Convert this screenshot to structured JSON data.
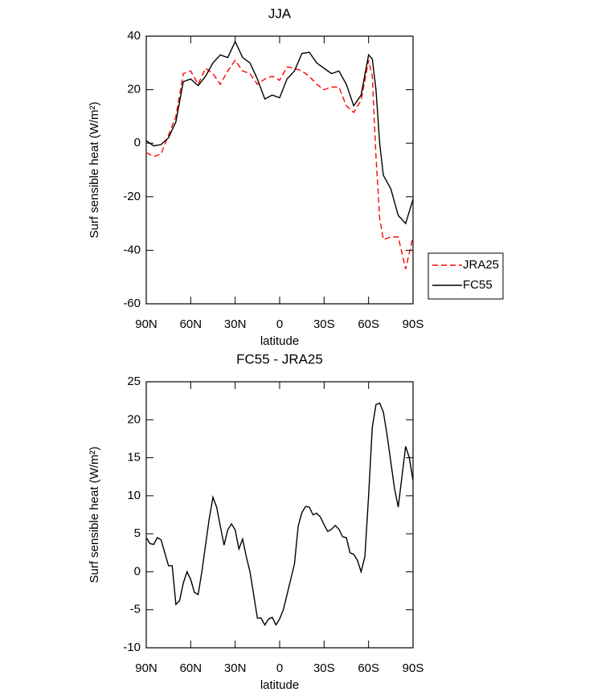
{
  "chart_data": [
    {
      "type": "line",
      "title": "JJA",
      "xlabel": "latitude",
      "ylabel": "Surf sensible heat (W/m²)",
      "x": [
        90,
        85,
        80,
        75,
        70,
        65,
        60,
        55,
        50,
        45,
        40,
        35,
        30,
        25,
        20,
        15,
        10,
        5,
        0,
        -5,
        -10,
        -15,
        -20,
        -25,
        -30,
        -35,
        -40,
        -45,
        -50,
        -55,
        -60,
        -62.5,
        -65,
        -67.5,
        -70,
        -75,
        -80,
        -85,
        -90
      ],
      "series": [
        {
          "name": "JRA25",
          "color": "#ff0000",
          "dash": true,
          "values": [
            -3.5,
            -5,
            -4,
            3,
            10,
            26,
            27,
            22,
            28,
            26,
            22,
            27,
            31,
            27,
            26,
            22,
            24,
            25,
            23.5,
            28.5,
            28,
            27,
            25,
            22,
            20,
            21,
            21,
            14,
            11.5,
            16,
            31,
            25,
            -5,
            -28,
            -36,
            -35,
            -35,
            -47,
            -35
          ]
        },
        {
          "name": "FC55",
          "color": "#000000",
          "dash": false,
          "values": [
            1,
            -1,
            -0.5,
            2,
            8,
            23,
            24,
            21.5,
            25,
            30,
            33,
            32,
            38,
            32,
            30,
            24,
            16.5,
            18,
            17,
            24,
            27,
            33.5,
            34,
            30,
            28,
            26,
            27,
            22,
            14,
            18,
            33,
            31.5,
            20,
            0,
            -12,
            -17,
            -27,
            -30,
            -21
          ]
        }
      ],
      "xlim": [
        90,
        -90
      ],
      "ylim": [
        -60,
        40
      ],
      "xticks": [
        {
          "value": 90,
          "label": "90N"
        },
        {
          "value": 60,
          "label": "60N"
        },
        {
          "value": 30,
          "label": "30N"
        },
        0,
        {
          "value": -30,
          "label": "30S"
        },
        {
          "value": -60,
          "label": "60S"
        },
        {
          "value": -90,
          "label": "90S"
        }
      ],
      "yticks": [
        -60,
        -40,
        -20,
        0,
        20,
        40
      ],
      "legend": "right"
    },
    {
      "type": "line",
      "title": "FC55 - JRA25",
      "xlabel": "latitude",
      "ylabel": "Surf sensible heat (W/m²)",
      "x": [
        90,
        87.5,
        85,
        82.5,
        80,
        77.5,
        75,
        72.5,
        70,
        67.5,
        65,
        62.5,
        60,
        57.5,
        55,
        52.5,
        50,
        47.5,
        45,
        42.5,
        40,
        37.5,
        35,
        32.5,
        30,
        27.5,
        25,
        22.5,
        20,
        17.5,
        15,
        12.5,
        10,
        7.5,
        5,
        2.5,
        0,
        -2.5,
        -5,
        -7.5,
        -10,
        -12.5,
        -15,
        -17.5,
        -20,
        -22.5,
        -25,
        -27.5,
        -30,
        -32.5,
        -35,
        -37.5,
        -40,
        -42.5,
        -45,
        -47.5,
        -50,
        -52.5,
        -55,
        -57.5,
        -60,
        -62.5,
        -65,
        -67.5,
        -70,
        -72.5,
        -75,
        -77.5,
        -80,
        -82.5,
        -85,
        -87.5,
        -90
      ],
      "series": [
        {
          "color": "#000000",
          "dash": false,
          "values": [
            4.5,
            3.7,
            3.6,
            4.5,
            4.2,
            2.5,
            0.8,
            0.8,
            -4.3,
            -3.8,
            -1.5,
            0,
            -1,
            -2.7,
            -3,
            0,
            3.5,
            7,
            9.8,
            8.5,
            6,
            3.5,
            5.5,
            6.3,
            5.5,
            3,
            4.3,
            2,
            0,
            -3,
            -6.1,
            -6.1,
            -7,
            -6.2,
            -6,
            -7,
            -6.2,
            -5,
            -3,
            -1,
            1,
            6,
            7.8,
            8.6,
            8.5,
            7.5,
            7.7,
            7.2,
            6.2,
            5.3,
            5.6,
            6.1,
            5.6,
            4.6,
            4.5,
            2.5,
            2.3,
            1.5,
            0,
            2,
            10,
            19,
            22,
            22.2,
            21,
            18,
            14.5,
            11,
            8.5,
            12.5,
            16.5,
            15,
            12
          ]
        }
      ],
      "xlim": [
        90,
        -90
      ],
      "ylim": [
        -10,
        25
      ],
      "xticks": [
        {
          "value": 90,
          "label": "90N"
        },
        {
          "value": 60,
          "label": "60N"
        },
        {
          "value": 30,
          "label": "30N"
        },
        0,
        {
          "value": -30,
          "label": "30S"
        },
        {
          "value": -60,
          "label": "60S"
        },
        {
          "value": -90,
          "label": "90S"
        }
      ],
      "yticks": [
        -10,
        -5,
        0,
        5,
        10,
        15,
        20,
        25
      ]
    }
  ]
}
